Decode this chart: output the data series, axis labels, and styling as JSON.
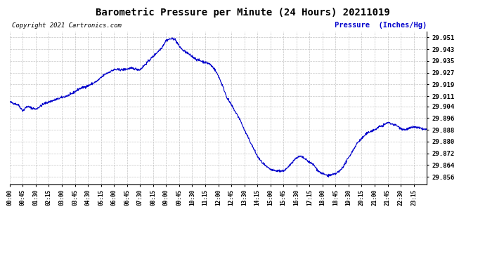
{
  "title": "Barometric Pressure per Minute (24 Hours) 20211019",
  "title_fontsize": 10,
  "copyright_text": "Copyright 2021 Cartronics.com",
  "copyright_fontsize": 6.5,
  "ylabel": "Pressure  (Inches/Hg)",
  "ylabel_color": "#0000cc",
  "ylabel_fontsize": 7.5,
  "background_color": "#ffffff",
  "line_color": "#0000cc",
  "line_width": 0.8,
  "grid_color": "#aaaaaa",
  "yticks": [
    29.856,
    29.864,
    29.872,
    29.88,
    29.888,
    29.896,
    29.904,
    29.911,
    29.919,
    29.927,
    29.935,
    29.943,
    29.951
  ],
  "ylim": [
    29.851,
    29.955
  ],
  "xtick_labels": [
    "00:00",
    "00:45",
    "01:30",
    "02:15",
    "03:00",
    "03:45",
    "04:30",
    "05:15",
    "06:00",
    "06:45",
    "07:30",
    "08:15",
    "09:00",
    "09:45",
    "10:30",
    "11:15",
    "12:00",
    "12:45",
    "13:30",
    "14:15",
    "15:00",
    "15:45",
    "16:30",
    "17:15",
    "18:00",
    "18:45",
    "19:30",
    "20:15",
    "21:00",
    "21:45",
    "22:30",
    "23:15"
  ],
  "key_times": [
    0,
    45,
    90,
    135,
    180,
    225,
    270,
    315,
    360,
    405,
    450,
    495,
    540,
    585,
    630,
    675,
    720,
    765,
    810,
    855,
    900,
    945,
    990,
    1035,
    1080,
    1125,
    1170,
    1215,
    1260,
    1305,
    1350,
    1395
  ],
  "key_t2": [
    0,
    30,
    45,
    60,
    90,
    120,
    135,
    150,
    180,
    210,
    240,
    270,
    300,
    330,
    360,
    390,
    420,
    450,
    480,
    495,
    510,
    525,
    540,
    555,
    570,
    585,
    600,
    615,
    630,
    645,
    660,
    675,
    690,
    705,
    720,
    735,
    750,
    765,
    780,
    795,
    810,
    825,
    840,
    855,
    870,
    885,
    900,
    915,
    930,
    945,
    960,
    975,
    990,
    1005,
    1020,
    1035,
    1050,
    1065,
    1080,
    1095,
    1110,
    1125,
    1140,
    1155,
    1170,
    1185,
    1200,
    1215,
    1230,
    1245,
    1260,
    1275,
    1290,
    1305,
    1320,
    1335,
    1350,
    1365,
    1380,
    1395,
    1440
  ],
  "key_v2": [
    29.907,
    29.905,
    29.901,
    29.904,
    29.902,
    29.906,
    29.907,
    29.908,
    29.91,
    29.912,
    29.916,
    29.918,
    29.921,
    29.926,
    29.929,
    29.929,
    29.93,
    29.929,
    29.935,
    29.938,
    29.941,
    29.944,
    29.949,
    29.95,
    29.95,
    29.945,
    29.942,
    29.94,
    29.938,
    29.936,
    29.935,
    29.934,
    29.933,
    29.93,
    29.925,
    29.918,
    29.91,
    29.905,
    29.9,
    29.895,
    29.888,
    29.882,
    29.876,
    29.87,
    29.866,
    29.863,
    29.861,
    29.86,
    29.86,
    29.86,
    29.862,
    29.866,
    29.869,
    29.87,
    29.868,
    29.866,
    29.864,
    29.86,
    29.858,
    29.857,
    29.857,
    29.858,
    29.86,
    29.864,
    29.869,
    29.874,
    29.879,
    29.882,
    29.885,
    29.887,
    29.888,
    29.89,
    29.891,
    29.893,
    29.892,
    29.891,
    29.889,
    29.888,
    29.889,
    29.89,
    29.888
  ]
}
